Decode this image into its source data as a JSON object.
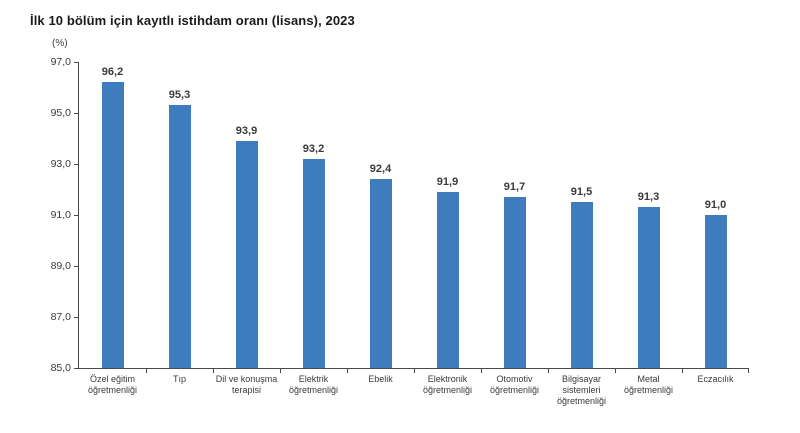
{
  "page": {
    "title": "İlk 10 bölüm için kayıtlı istihdam oranı (lisans), 2023",
    "unit_label": "(%)"
  },
  "colors": {
    "bar": "#3E7CBD",
    "axis": "#4a4a4a",
    "title_text": "#1a1a1a",
    "label_text": "#3a3a3a"
  },
  "chart_data": {
    "type": "bar",
    "title": "İlk 10 bölüm için kayıtlı istihdam oranı (lisans), 2023",
    "ylabel": "(%)",
    "xlabel": "",
    "categories": [
      "Özel eğitim öğretmenliği",
      "Tıp",
      "Dil ve konuşma terapisi",
      "Elektrik öğretmenliği",
      "Ebelik",
      "Elektronik öğretmenliği",
      "Otomotiv öğretmenliği",
      "Bilgisayar sistemleri öğretmenliği",
      "Metal öğretmenliği",
      "Eczacılık"
    ],
    "values": [
      96.2,
      95.3,
      93.9,
      93.2,
      92.4,
      91.9,
      91.7,
      91.5,
      91.3,
      91.0
    ],
    "value_labels": [
      "96,2",
      "95,3",
      "93,9",
      "93,2",
      "92,4",
      "91,9",
      "91,7",
      "91,5",
      "91,3",
      "91,0"
    ],
    "ylim": [
      85.0,
      97.0
    ],
    "ytick_values": [
      85.0,
      87.0,
      89.0,
      91.0,
      93.0,
      95.0,
      97.0
    ],
    "ytick_labels": [
      "85,0",
      "87,0",
      "89,0",
      "91,0",
      "93,0",
      "95,0",
      "97,0"
    ],
    "grid": false,
    "legend": "none",
    "bar_color": "#3E7CBD"
  }
}
